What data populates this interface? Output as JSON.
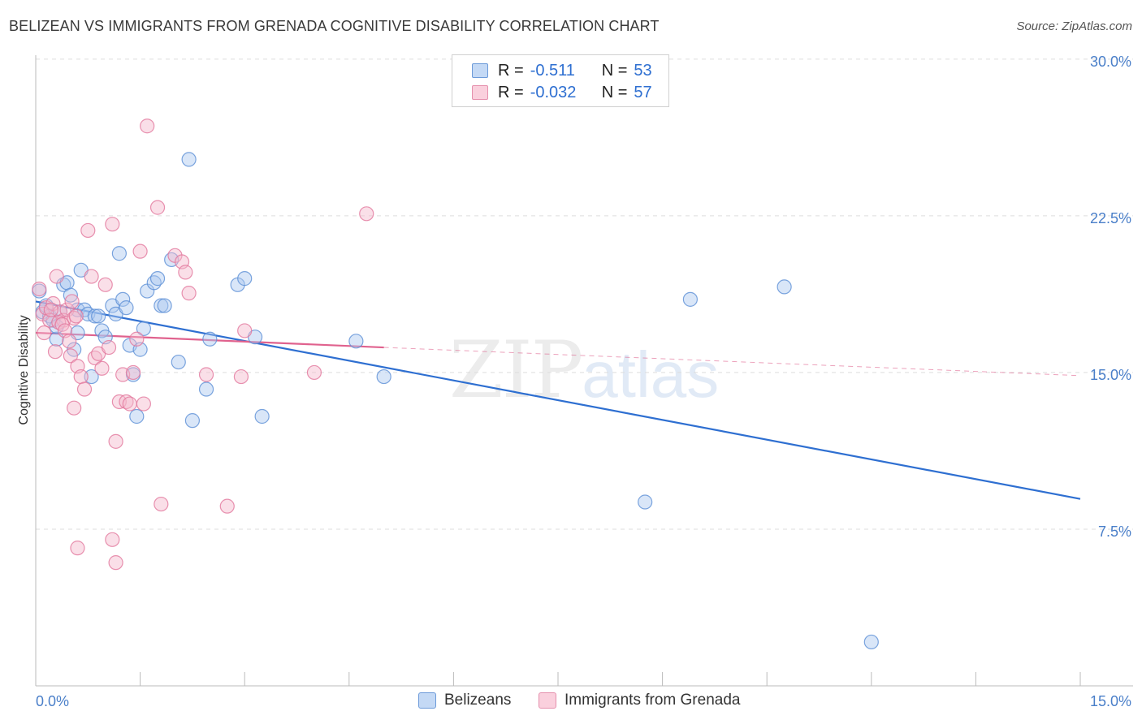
{
  "title": "BELIZEAN VS IMMIGRANTS FROM GRENADA COGNITIVE DISABILITY CORRELATION CHART",
  "source": "Source: ZipAtlas.com",
  "watermark": {
    "zip": "ZIP",
    "atlas": "atlas"
  },
  "legend": {
    "r_label": "R =",
    "n_label": "N =",
    "rows": [
      {
        "name": "Belizeans",
        "r": "-0.511",
        "n": "53"
      },
      {
        "name": "Immigrants from Grenada",
        "r": "-0.032",
        "n": "57"
      }
    ]
  },
  "colors": {
    "blue_fill": "#aac8f0",
    "blue_stroke": "#5b8fd6",
    "blue_line": "#2e6fd1",
    "pink_fill": "#f5b8cc",
    "pink_stroke": "#e2779c",
    "pink_line": "#e0628e",
    "grid": "#dddddd",
    "tick_text": "#4a7fc9"
  },
  "chart_data": {
    "type": "scatter",
    "title": "BELIZEAN VS IMMIGRANTS FROM GRENADA COGNITIVE DISABILITY CORRELATION CHART",
    "xlabel": "",
    "ylabel": "Cognitive Disability",
    "xlim": [
      0,
      15
    ],
    "ylim": [
      0,
      30.5
    ],
    "x_tick_labels": [
      "0.0%",
      "15.0%"
    ],
    "y_ticks": [
      7.5,
      15.0,
      22.5,
      30.0
    ],
    "y_tick_labels": [
      "7.5%",
      "15.0%",
      "22.5%",
      "30.0%"
    ],
    "series": [
      {
        "name": "Belizeans",
        "color": "blue",
        "points": [
          [
            0.05,
            18.9
          ],
          [
            0.1,
            17.9
          ],
          [
            0.15,
            18.2
          ],
          [
            0.2,
            17.7
          ],
          [
            0.25,
            17.5
          ],
          [
            0.3,
            16.6
          ],
          [
            0.35,
            17.9
          ],
          [
            0.4,
            19.2
          ],
          [
            0.45,
            19.3
          ],
          [
            0.5,
            18.7
          ],
          [
            0.55,
            16.1
          ],
          [
            0.6,
            18.0
          ],
          [
            0.65,
            19.9
          ],
          [
            0.7,
            18.0
          ],
          [
            0.75,
            17.8
          ],
          [
            0.8,
            14.8
          ],
          [
            0.85,
            17.7
          ],
          [
            0.9,
            17.7
          ],
          [
            0.95,
            17.0
          ],
          [
            1.0,
            16.7
          ],
          [
            1.1,
            18.2
          ],
          [
            1.15,
            17.8
          ],
          [
            1.2,
            20.7
          ],
          [
            1.25,
            18.5
          ],
          [
            1.3,
            18.1
          ],
          [
            1.35,
            16.3
          ],
          [
            1.4,
            14.9
          ],
          [
            1.45,
            12.9
          ],
          [
            1.5,
            16.1
          ],
          [
            1.55,
            17.1
          ],
          [
            1.6,
            18.9
          ],
          [
            1.7,
            19.3
          ],
          [
            1.75,
            19.5
          ],
          [
            1.8,
            18.2
          ],
          [
            1.85,
            18.2
          ],
          [
            1.95,
            20.4
          ],
          [
            2.05,
            15.5
          ],
          [
            2.2,
            25.2
          ],
          [
            2.25,
            12.7
          ],
          [
            2.45,
            14.2
          ],
          [
            2.5,
            16.6
          ],
          [
            2.9,
            19.2
          ],
          [
            3.0,
            19.5
          ],
          [
            3.15,
            16.7
          ],
          [
            3.25,
            12.9
          ],
          [
            4.6,
            16.5
          ],
          [
            5.0,
            14.8
          ],
          [
            8.75,
            8.8
          ],
          [
            9.4,
            18.5
          ],
          [
            10.75,
            19.1
          ],
          [
            12.0,
            2.1
          ],
          [
            0.3,
            17.2
          ],
          [
            0.6,
            16.9
          ]
        ],
        "trend": {
          "x": [
            0,
            15
          ],
          "y": [
            18.4,
            8.95
          ]
        }
      },
      {
        "name": "Immigrants from Grenada",
        "color": "pink",
        "points": [
          [
            0.05,
            19.0
          ],
          [
            0.1,
            17.8
          ],
          [
            0.15,
            18.1
          ],
          [
            0.2,
            17.5
          ],
          [
            0.25,
            18.3
          ],
          [
            0.3,
            19.6
          ],
          [
            0.35,
            17.9
          ],
          [
            0.4,
            17.5
          ],
          [
            0.45,
            18.0
          ],
          [
            0.5,
            15.8
          ],
          [
            0.55,
            17.6
          ],
          [
            0.6,
            15.3
          ],
          [
            0.65,
            14.8
          ],
          [
            0.7,
            14.2
          ],
          [
            0.75,
            21.8
          ],
          [
            0.8,
            19.6
          ],
          [
            0.85,
            15.7
          ],
          [
            0.9,
            15.9
          ],
          [
            0.95,
            15.2
          ],
          [
            1.0,
            19.2
          ],
          [
            1.05,
            16.2
          ],
          [
            1.1,
            22.1
          ],
          [
            1.15,
            11.7
          ],
          [
            1.2,
            13.6
          ],
          [
            1.25,
            14.9
          ],
          [
            1.3,
            13.6
          ],
          [
            1.35,
            13.5
          ],
          [
            1.4,
            15.0
          ],
          [
            1.45,
            16.6
          ],
          [
            1.5,
            20.8
          ],
          [
            1.55,
            13.5
          ],
          [
            1.6,
            26.8
          ],
          [
            1.75,
            22.9
          ],
          [
            1.8,
            8.7
          ],
          [
            2.0,
            20.6
          ],
          [
            2.1,
            20.3
          ],
          [
            2.15,
            19.8
          ],
          [
            2.2,
            18.8
          ],
          [
            2.45,
            14.9
          ],
          [
            2.75,
            8.6
          ],
          [
            2.95,
            14.8
          ],
          [
            3.0,
            17.0
          ],
          [
            4.0,
            15.0
          ],
          [
            4.75,
            22.6
          ],
          [
            0.55,
            13.3
          ],
          [
            0.6,
            6.6
          ],
          [
            1.1,
            7.0
          ],
          [
            1.15,
            5.9
          ],
          [
            0.12,
            16.9
          ],
          [
            0.22,
            18.0
          ],
          [
            0.28,
            16.0
          ],
          [
            0.33,
            17.4
          ],
          [
            0.38,
            17.3
          ],
          [
            0.42,
            17.0
          ],
          [
            0.48,
            16.5
          ],
          [
            0.52,
            18.4
          ],
          [
            0.58,
            17.7
          ]
        ],
        "trend_solid": {
          "x": [
            0,
            5
          ],
          "y": [
            16.9,
            16.2
          ]
        },
        "trend_dashed": {
          "x": [
            5,
            15
          ],
          "y": [
            16.2,
            14.85
          ]
        }
      }
    ]
  }
}
